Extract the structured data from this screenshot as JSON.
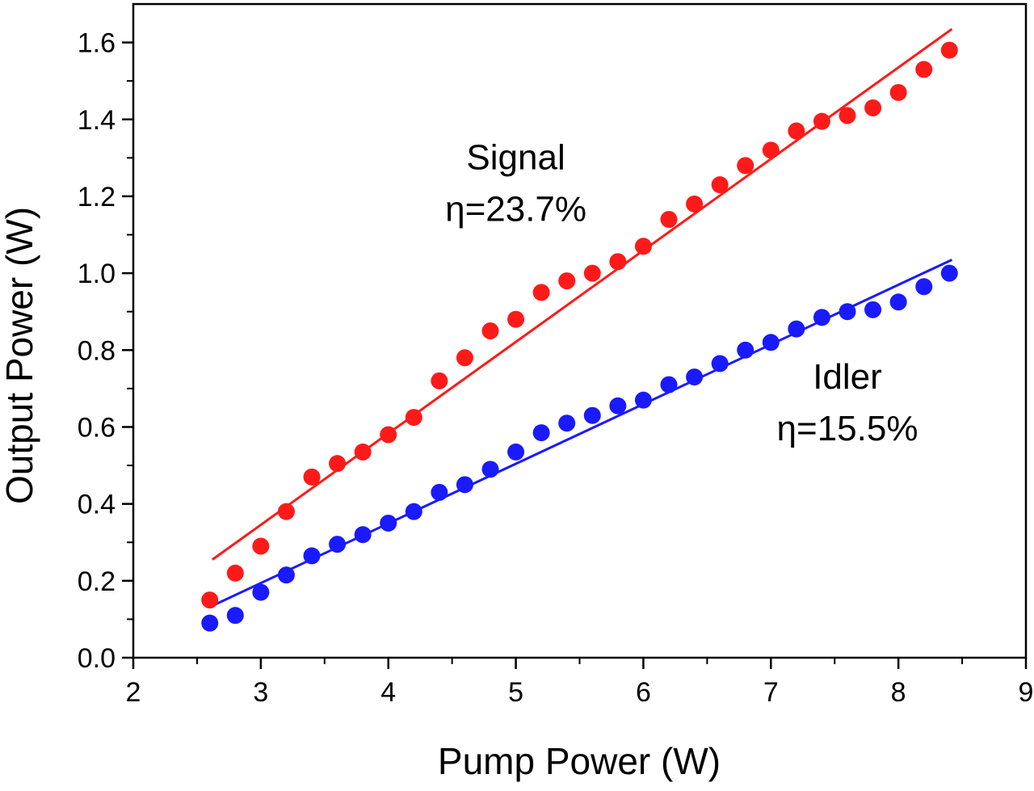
{
  "chart_data": {
    "type": "scatter",
    "title": "",
    "xlabel": "Pump Power (W)",
    "ylabel": "Output Power (W)",
    "xlim": [
      2,
      9
    ],
    "ylim": [
      0,
      1.7
    ],
    "xticks": [
      2,
      3,
      4,
      5,
      6,
      7,
      8,
      9
    ],
    "xtick_labels": [
      "2",
      "3",
      "4",
      "5",
      "6",
      "7",
      "8",
      "9"
    ],
    "yticks": [
      0,
      0.2,
      0.4,
      0.6,
      0.8,
      1.0,
      1.2,
      1.4,
      1.6
    ],
    "ytick_labels": [
      "0.0",
      "0.2",
      "0.4",
      "0.6",
      "0.8",
      "1.0",
      "1.2",
      "1.4",
      "1.6"
    ],
    "grid": false,
    "legend": "none",
    "x": [
      2.6,
      2.8,
      3.0,
      3.2,
      3.4,
      3.6,
      3.8,
      4.0,
      4.2,
      4.4,
      4.6,
      4.8,
      5.0,
      5.2,
      5.4,
      5.6,
      5.8,
      6.0,
      6.2,
      6.4,
      6.6,
      6.8,
      7.0,
      7.2,
      7.4,
      7.6,
      7.8,
      8.0,
      8.2,
      8.4
    ],
    "series": [
      {
        "color": "#ff1a1a",
        "values": [
          0.15,
          0.22,
          0.29,
          0.38,
          0.47,
          0.505,
          0.535,
          0.58,
          0.625,
          0.72,
          0.78,
          0.85,
          0.88,
          0.95,
          0.98,
          1.0,
          1.03,
          1.07,
          1.14,
          1.18,
          1.23,
          1.28,
          1.32,
          1.37,
          1.395,
          1.41,
          1.43,
          1.47,
          1.53,
          1.58
        ],
        "fit": {
          "x": [
            2.62,
            8.42
          ],
          "y": [
            0.255,
            1.635
          ]
        }
      },
      {
        "color": "#1a1aff",
        "values": [
          0.09,
          0.11,
          0.17,
          0.215,
          0.265,
          0.295,
          0.32,
          0.35,
          0.38,
          0.43,
          0.45,
          0.49,
          0.535,
          0.585,
          0.61,
          0.63,
          0.655,
          0.67,
          0.71,
          0.73,
          0.765,
          0.8,
          0.82,
          0.855,
          0.885,
          0.9,
          0.905,
          0.925,
          0.965,
          1.0
        ],
        "fit": {
          "x": [
            2.62,
            8.42
          ],
          "y": [
            0.135,
            1.035
          ]
        }
      }
    ],
    "annotations": [
      {
        "lines": [
          "Signal",
          "η=23.7%"
        ],
        "x": 5.0,
        "y": 1.27
      },
      {
        "lines": [
          "Idler",
          "η=15.5%"
        ],
        "x": 7.6,
        "y": 0.7
      }
    ]
  }
}
